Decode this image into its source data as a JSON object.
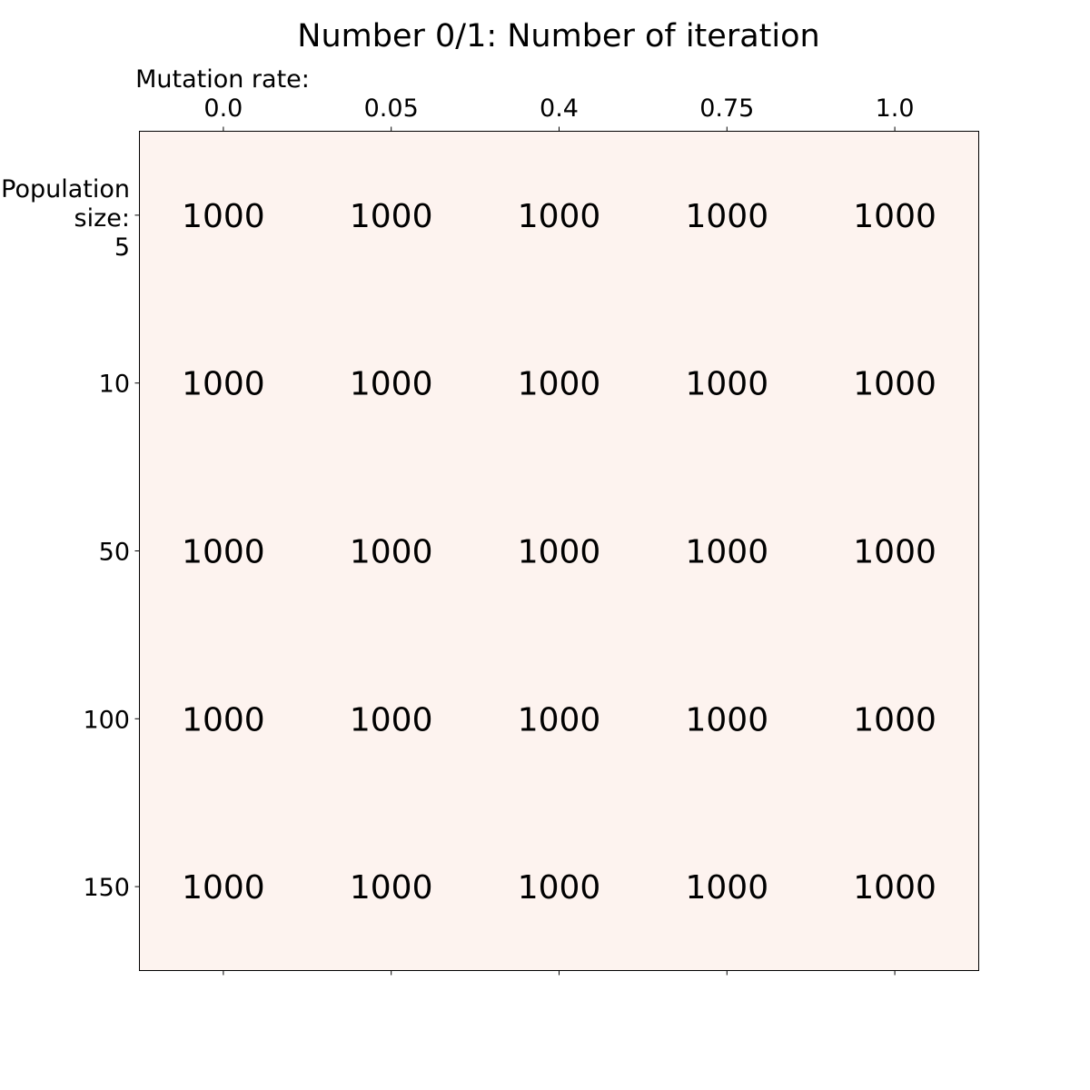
{
  "chart_data": {
    "type": "heatmap",
    "title": "Number 0/1: Number of iteration",
    "xlabel": "Mutation rate:",
    "ylabel": "Population size:",
    "x_categories": [
      "0.0",
      "0.05",
      "0.4",
      "0.75",
      "1.0"
    ],
    "y_categories": [
      "5",
      "10",
      "50",
      "100",
      "150"
    ],
    "values": [
      [
        1000,
        1000,
        1000,
        1000,
        1000
      ],
      [
        1000,
        1000,
        1000,
        1000,
        1000
      ],
      [
        1000,
        1000,
        1000,
        1000,
        1000
      ],
      [
        1000,
        1000,
        1000,
        1000,
        1000
      ],
      [
        1000,
        1000,
        1000,
        1000,
        1000
      ]
    ],
    "x_axis_position": "top",
    "grid": false,
    "legend": "none",
    "colormap": "Reds",
    "cell_color": "#fdf3ef",
    "text_color": "#000000"
  }
}
